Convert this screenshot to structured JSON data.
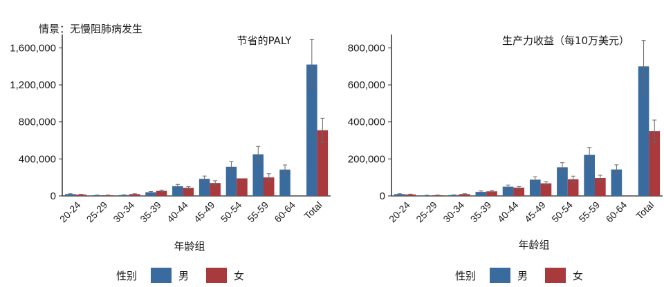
{
  "scenario_label": "情景：无慢阻肺病发生",
  "legend": {
    "title": "性别",
    "entries": [
      {
        "label": "男",
        "color": "#3a6b9e"
      },
      {
        "label": "女",
        "color": "#a83a3e"
      }
    ]
  },
  "chart_data": [
    {
      "type": "bar",
      "title": "节省的PALY",
      "xlabel": "年龄组",
      "ylabel": "",
      "categories": [
        "20-24",
        "25-29",
        "30-34",
        "35-39",
        "40-44",
        "45-49",
        "50-54",
        "55-59",
        "60-64",
        "Total"
      ],
      "ylim": [
        0,
        1700000
      ],
      "yticks": [
        0,
        400000,
        800000,
        1200000,
        1600000
      ],
      "ytick_labels": [
        "0",
        "400,000",
        "800,000",
        "1,200,000",
        "1,600,000"
      ],
      "series": [
        {
          "name": "男",
          "color": "#3a6b9e",
          "values": [
            20000,
            8000,
            10000,
            40000,
            105000,
            185000,
            315000,
            450000,
            285000,
            1420000
          ],
          "error": [
            4000,
            2000,
            2000,
            8000,
            20000,
            30000,
            55000,
            85000,
            50000,
            270000
          ]
        },
        {
          "name": "女",
          "color": "#a83a3e",
          "values": [
            15000,
            8000,
            20000,
            55000,
            88000,
            140000,
            190000,
            200000,
            0,
            710000
          ],
          "error": [
            3000,
            2000,
            4000,
            8000,
            12000,
            25000,
            0,
            40000,
            0,
            130000
          ]
        }
      ]
    },
    {
      "type": "bar",
      "title": "生产力收益（每10万美元）",
      "xlabel": "年龄组",
      "ylabel": "",
      "categories": [
        "20-24",
        "25-29",
        "30-34",
        "35-39",
        "40-44",
        "45-49",
        "50-54",
        "55-59",
        "60-64",
        "Total"
      ],
      "ylim": [
        0,
        850000
      ],
      "yticks": [
        0,
        200000,
        400000,
        600000,
        800000
      ],
      "ytick_labels": [
        "0",
        "200,000",
        "400,000",
        "600,000",
        "800,000"
      ],
      "series": [
        {
          "name": "男",
          "color": "#3a6b9e",
          "values": [
            10000,
            3000,
            5000,
            22000,
            50000,
            88000,
            155000,
            222000,
            143000,
            700000
          ],
          "error": [
            2000,
            1000,
            1000,
            5000,
            9000,
            16000,
            25000,
            40000,
            25000,
            140000
          ]
        },
        {
          "name": "女",
          "color": "#a83a3e",
          "values": [
            8000,
            4000,
            10000,
            25000,
            45000,
            68000,
            90000,
            97000,
            0,
            350000
          ],
          "error": [
            2000,
            1000,
            2000,
            4000,
            6000,
            8000,
            17000,
            15000,
            0,
            60000
          ]
        }
      ]
    }
  ]
}
